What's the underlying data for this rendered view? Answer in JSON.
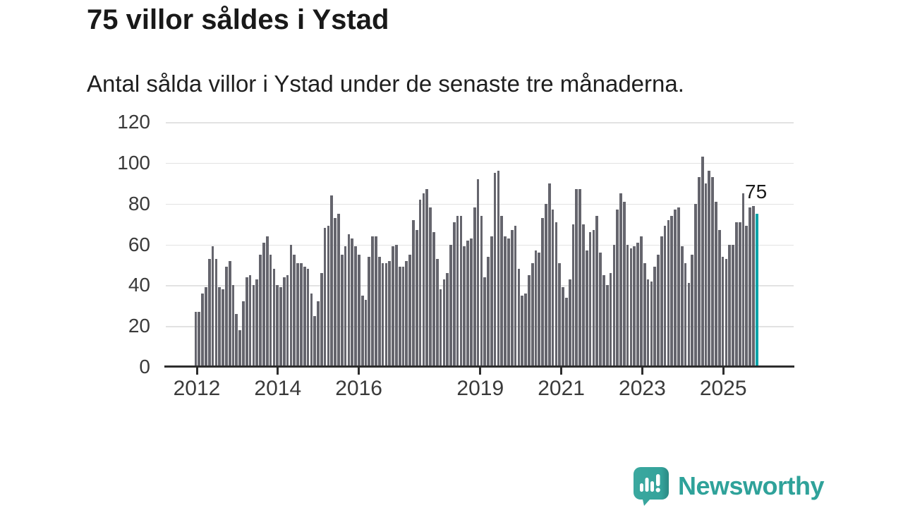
{
  "header": {
    "title": "75 villor såldes i Ystad",
    "subtitle": "Antal sålda villor i Ystad under de senaste tre månaderna."
  },
  "chart_data": {
    "type": "bar",
    "title": "75 villor såldes i Ystad",
    "subtitle": "Antal sålda villor i Ystad under de senaste tre månaderna.",
    "ylim": [
      0,
      120
    ],
    "y_ticks": [
      0,
      20,
      40,
      60,
      80,
      100,
      120
    ],
    "x_ticks": [
      {
        "year": 2012,
        "label": "2012"
      },
      {
        "year": 2014,
        "label": "2014"
      },
      {
        "year": 2016,
        "label": "2016"
      },
      {
        "year": 2019,
        "label": "2019"
      },
      {
        "year": 2021,
        "label": "2021"
      },
      {
        "year": 2023,
        "label": "2023"
      },
      {
        "year": 2025,
        "label": "2025"
      }
    ],
    "grid": "horizontal",
    "start_month": "2012-01",
    "end_month": "2025-10",
    "values": [
      27,
      27,
      36,
      39,
      53,
      59,
      53,
      39,
      38,
      49,
      52,
      40,
      26,
      18,
      32,
      44,
      45,
      40,
      43,
      55,
      61,
      64,
      55,
      48,
      40,
      39,
      44,
      45,
      60,
      55,
      51,
      51,
      49,
      48,
      36,
      25,
      32,
      46,
      68,
      69,
      84,
      73,
      75,
      55,
      59,
      65,
      63,
      59,
      55,
      35,
      33,
      54,
      64,
      64,
      54,
      51,
      51,
      52,
      59,
      60,
      49,
      49,
      52,
      55,
      72,
      67,
      82,
      85,
      87,
      78,
      66,
      53,
      38,
      43,
      46,
      60,
      71,
      74,
      74,
      59,
      62,
      63,
      78,
      92,
      74,
      44,
      54,
      64,
      95,
      96,
      74,
      64,
      63,
      67,
      69,
      48,
      35,
      36,
      45,
      51,
      57,
      56,
      73,
      80,
      90,
      77,
      71,
      51,
      39,
      34,
      43,
      70,
      87,
      87,
      70,
      57,
      66,
      67,
      74,
      56,
      45,
      40,
      46,
      60,
      77,
      85,
      81,
      60,
      58,
      59,
      61,
      64,
      51,
      43,
      42,
      49,
      55,
      64,
      69,
      72,
      74,
      77,
      78,
      59,
      51,
      41,
      55,
      80,
      93,
      103,
      90,
      96,
      93,
      81,
      67,
      54,
      53,
      60,
      60,
      71,
      71,
      85,
      69,
      78,
      79,
      75
    ],
    "highlight_last": true,
    "highlight_value": 75,
    "highlight_label": "75",
    "bar_color": "#65656d",
    "highlight_color": "#00a3a8",
    "grid_color": "#e2e2e2",
    "axis_color": "#2d2d2d"
  },
  "footer": {
    "brand": "Newsworthy",
    "brand_color": "#2fa29a",
    "logo_icon": "speech-bubble-bar-chart-icon"
  }
}
